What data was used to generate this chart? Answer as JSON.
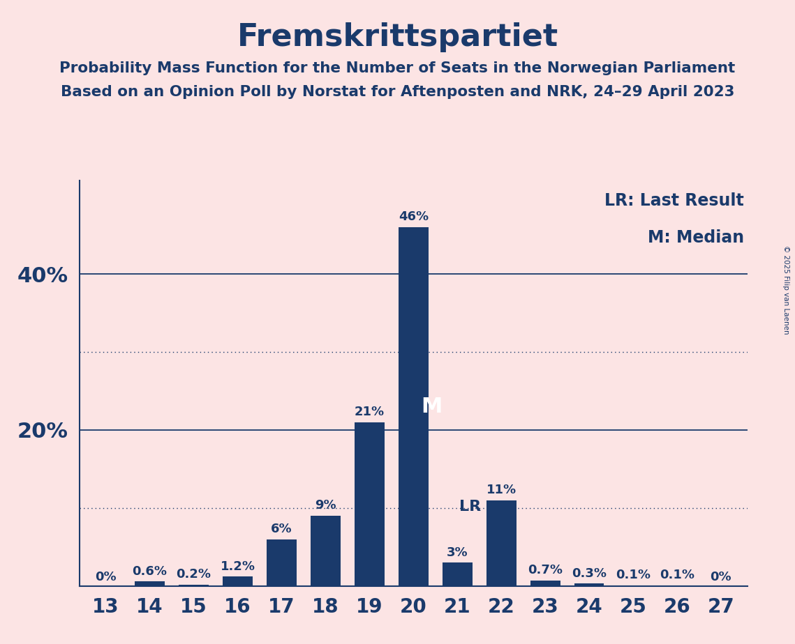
{
  "title": "Fremskrittspartiet",
  "subtitle1": "Probability Mass Function for the Number of Seats in the Norwegian Parliament",
  "subtitle2": "Based on an Opinion Poll by Norstat for Aftenposten and NRK, 24–29 April 2023",
  "copyright": "© 2025 Filip van Laenen",
  "seats": [
    13,
    14,
    15,
    16,
    17,
    18,
    19,
    20,
    21,
    22,
    23,
    24,
    25,
    26,
    27
  ],
  "probabilities": [
    0.0,
    0.6,
    0.2,
    1.2,
    6.0,
    9.0,
    21.0,
    46.0,
    3.0,
    11.0,
    0.7,
    0.3,
    0.1,
    0.1,
    0.0
  ],
  "labels": [
    "0%",
    "0.6%",
    "0.2%",
    "1.2%",
    "6%",
    "9%",
    "21%",
    "46%",
    "3%",
    "11%",
    "0.7%",
    "0.3%",
    "0.1%",
    "0.1%",
    "0%"
  ],
  "bar_color": "#1a3a6b",
  "background_color": "#fce4e4",
  "text_color": "#1a3a6b",
  "median_seat": 20,
  "last_result_seat": 21,
  "legend_lr": "LR: Last Result",
  "legend_m": "M: Median",
  "grid_solid": [
    20,
    40
  ],
  "grid_dotted": [
    10,
    30
  ],
  "ymax": 52,
  "figsize": [
    11.39,
    9.24
  ],
  "dpi": 100
}
